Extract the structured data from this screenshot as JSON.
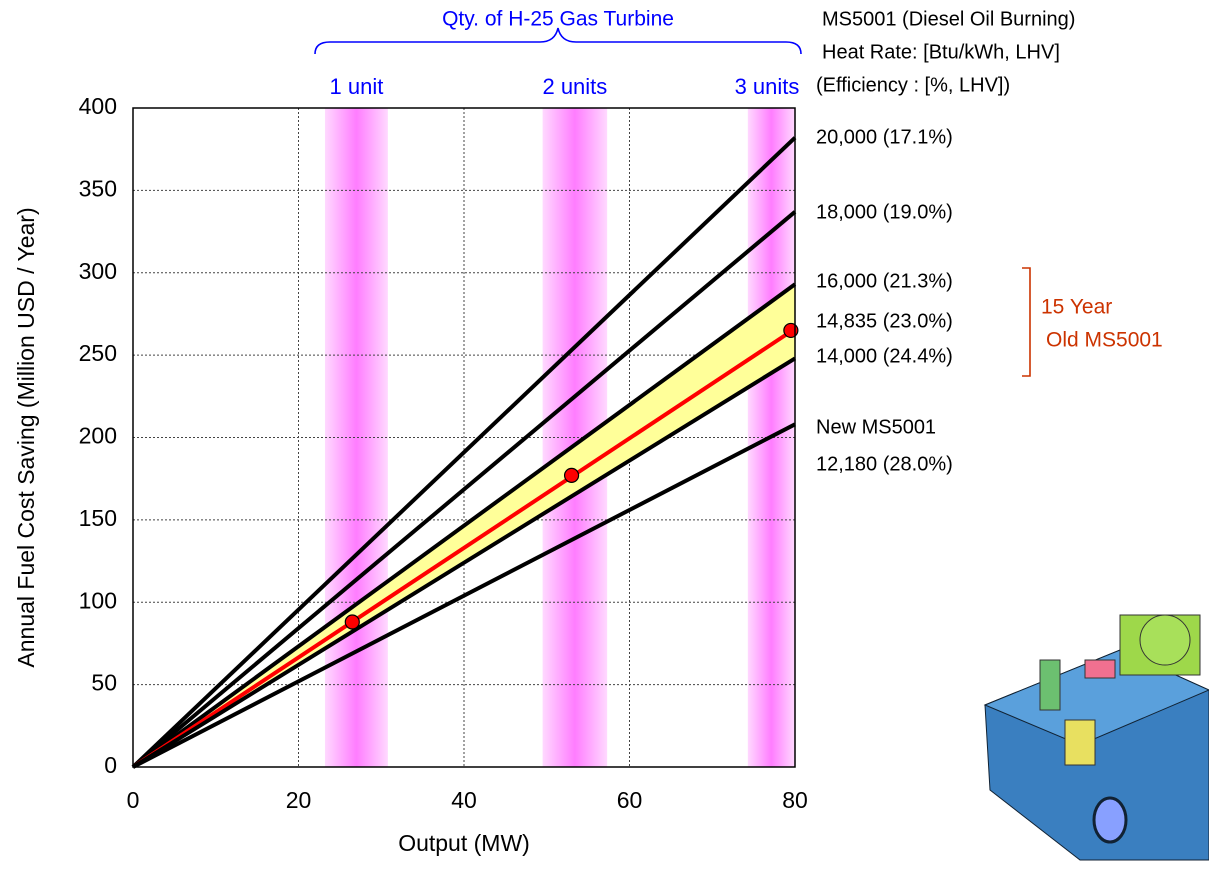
{
  "chart_data": {
    "type": "line",
    "x_label": "Output (MW)",
    "y_label": "Annual Fuel Cost Saving (Million USD / Year)",
    "xlim": [
      0,
      80
    ],
    "xticks": [
      0,
      20,
      40,
      60,
      80
    ],
    "ylim": [
      0,
      400
    ],
    "yticks": [
      0,
      50,
      100,
      150,
      200,
      250,
      300,
      350,
      400
    ],
    "grid": true,
    "header": "Qty. of H-25 Gas Turbine",
    "side_title": [
      "MS5001 (Diesel Oil Burning)",
      "Heat Rate: [Btu/kWh, LHV]",
      "(Efficiency : [%, LHV])"
    ],
    "bands": [
      {
        "label": "1 unit",
        "range": [
          23.2,
          30.8
        ]
      },
      {
        "label": "2 units",
        "range": [
          49.5,
          57.3
        ]
      },
      {
        "label": "3 units",
        "range": [
          74.3,
          80
        ]
      }
    ],
    "x": [
      0,
      80
    ],
    "series": [
      {
        "name": "20,000 (17.1%)",
        "color": "#000000",
        "values": [
          0,
          382
        ]
      },
      {
        "name": "18,000 (19.0%)",
        "color": "#000000",
        "values": [
          0,
          337
        ]
      },
      {
        "name": "16,000 (21.3%)",
        "color": "#000000",
        "values": [
          0,
          293
        ]
      },
      {
        "name": "14,835 (23.0%)",
        "color": "#ff0000",
        "values": [
          0,
          266
        ]
      },
      {
        "name": "14,000 (24.4%)",
        "color": "#000000",
        "values": [
          0,
          248
        ]
      },
      {
        "name": "12,180 (28.0%)",
        "note": "New MS5001",
        "color": "#000000",
        "values": [
          0,
          208
        ]
      }
    ],
    "shaded_between": [
      2,
      4
    ],
    "shade_color": "#ffff99",
    "points": {
      "x": [
        26.5,
        53,
        79.5
      ],
      "values": [
        88,
        177,
        265
      ],
      "color": "#ff0000"
    },
    "bracket_label": [
      "15 Year",
      "Old MS5001"
    ],
    "bracket_color": "#cc3300"
  }
}
